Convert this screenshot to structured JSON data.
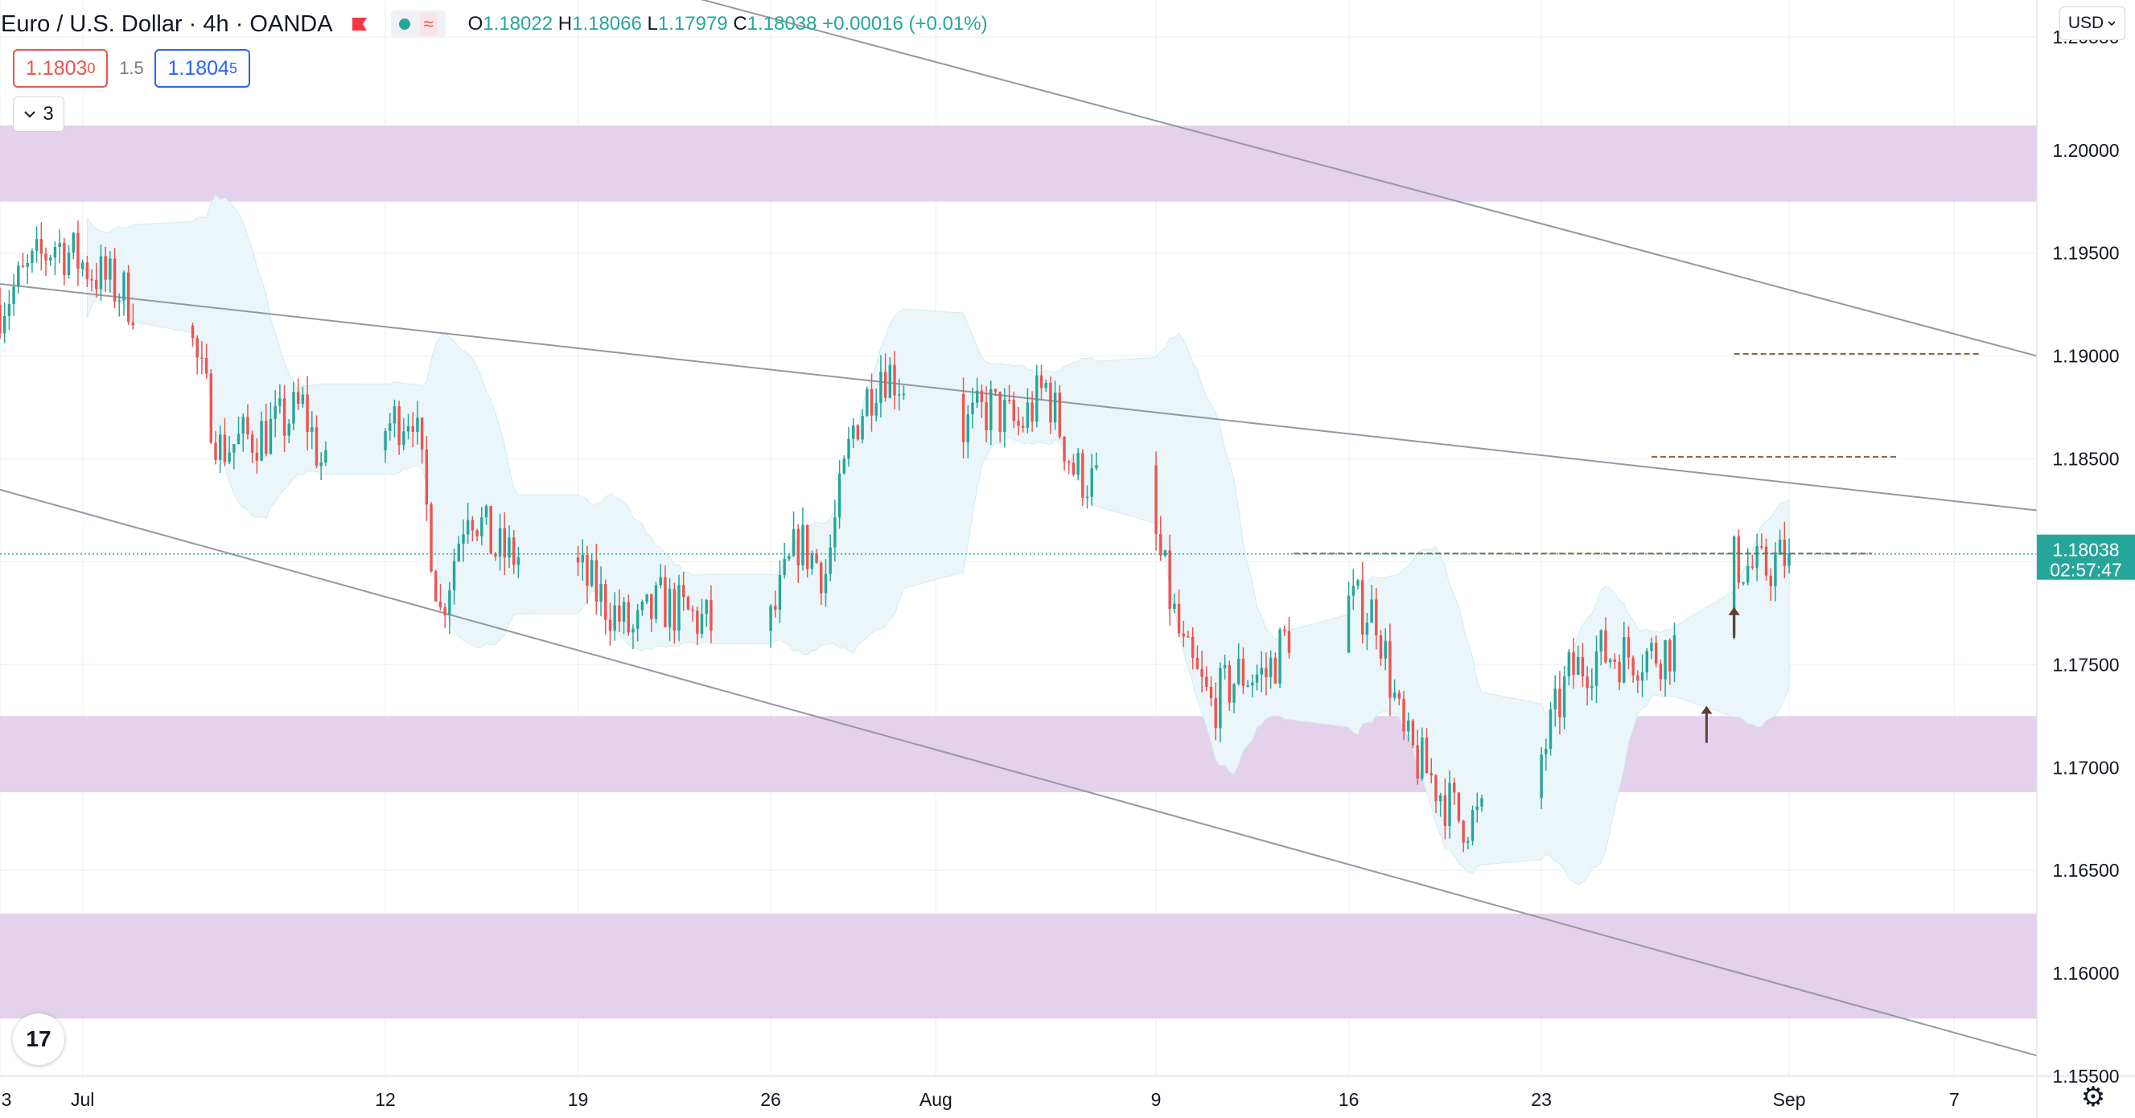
{
  "header": {
    "symbol": "Euro / U.S. Dollar · 4h · OANDA",
    "ohlc": {
      "o_label": "O",
      "o": "1.18022",
      "h_label": "H",
      "h": "1.18066",
      "l_label": "L",
      "l": "1.17979",
      "c_label": "C",
      "c": "1.18038",
      "change": "+0.00016 (+0.01%)"
    },
    "indicator_wave": "≈",
    "sell_price": "1.1803",
    "sell_price_sup": "0",
    "spread": "1.5",
    "buy_price": "1.1804",
    "buy_price_sup": "5",
    "collapse_count": "3",
    "currency": "USD",
    "logo": "17"
  },
  "icons": {
    "chevron": "chevron-down-icon",
    "logo": "tradingview-logo",
    "settings": "gear-icon"
  },
  "colors": {
    "up": "#26a69a",
    "down": "#ef5350",
    "zone": "#e4d1ec",
    "band": "#eaf6f9",
    "trendline": "#9598a1",
    "dashed_level": "#8b6b3e",
    "current_price": "#26a69a",
    "arrow": "#5d4037"
  },
  "chart_data": {
    "type": "candlestick",
    "title": "Euro / U.S. Dollar",
    "interval": "4h",
    "source": "OANDA",
    "ylim": [
      1.155,
      1.2073
    ],
    "y_ticks": [
      1.2055,
      1.2,
      1.195,
      1.19,
      1.185,
      1.18,
      1.175,
      1.17,
      1.165,
      1.16,
      1.155
    ],
    "y_tick_labels": [
      "1.20550",
      "1.20000",
      "1.19500",
      "1.19000",
      "1.18500",
      "",
      "1.17500",
      "1.17000",
      "1.16500",
      "1.16000",
      "1.15500"
    ],
    "x_axis": {
      "tick_labels": [
        "3",
        "Jul",
        "12",
        "19",
        "26",
        "Aug",
        "9",
        "16",
        "23",
        "Sep",
        "7"
      ],
      "tick_dates": [
        "2021-06-28",
        "2021-07-01",
        "2021-07-12",
        "2021-07-19",
        "2021-07-26",
        "2021-08-01",
        "2021-08-09",
        "2021-08-16",
        "2021-08-23",
        "2021-09-01",
        "2021-09-07"
      ],
      "visible_range": [
        "2021-06-28",
        "2021-09-10"
      ]
    },
    "last_price": "1.18038",
    "countdown": "02:57:47",
    "candle_path": [
      [
        "2021-06-28",
        1.1925
      ],
      [
        "2021-06-30",
        1.1955
      ],
      [
        "2021-07-02",
        1.1935
      ],
      [
        "2021-07-05",
        1.1905
      ],
      [
        "2021-07-06",
        1.1855
      ],
      [
        "2021-07-08",
        1.1865
      ],
      [
        "2021-07-09",
        1.1875
      ],
      [
        "2021-07-10",
        1.1835
      ],
      [
        "2021-07-11",
        1.1815
      ],
      [
        "2021-07-12",
        1.1865
      ],
      [
        "2021-07-13",
        1.1875
      ],
      [
        "2021-07-14",
        1.1775
      ],
      [
        "2021-07-15",
        1.183
      ],
      [
        "2021-07-16",
        1.1805
      ],
      [
        "2021-07-19",
        1.1795
      ],
      [
        "2021-07-20",
        1.178
      ],
      [
        "2021-07-21",
        1.1765
      ],
      [
        "2021-07-22",
        1.178
      ],
      [
        "2021-07-24",
        1.1768
      ],
      [
        "2021-07-26",
        1.177
      ],
      [
        "2021-07-27",
        1.181
      ],
      [
        "2021-07-28",
        1.1795
      ],
      [
        "2021-07-29",
        1.1865
      ],
      [
        "2021-07-30",
        1.1895
      ],
      [
        "2021-08-01",
        1.1875
      ],
      [
        "2021-08-02",
        1.1865
      ],
      [
        "2021-08-03",
        1.1875
      ],
      [
        "2021-08-04",
        1.1865
      ],
      [
        "2021-08-05",
        1.1885
      ],
      [
        "2021-08-06",
        1.1845
      ],
      [
        "2021-08-07",
        1.1835
      ],
      [
        "2021-08-09",
        1.181
      ],
      [
        "2021-08-10",
        1.1755
      ],
      [
        "2021-08-11",
        1.173
      ],
      [
        "2021-08-12",
        1.1745
      ],
      [
        "2021-08-13",
        1.1745
      ],
      [
        "2021-08-15",
        1.1795
      ],
      [
        "2021-08-16",
        1.178
      ],
      [
        "2021-08-17",
        1.1775
      ],
      [
        "2021-08-18",
        1.1712
      ],
      [
        "2021-08-19",
        1.1695
      ],
      [
        "2021-08-20",
        1.1675
      ],
      [
        "2021-08-22",
        1.1675
      ],
      [
        "2021-08-23",
        1.1705
      ],
      [
        "2021-08-24",
        1.1745
      ],
      [
        "2021-08-25",
        1.1755
      ],
      [
        "2021-08-26",
        1.1755
      ],
      [
        "2021-08-27",
        1.1755
      ],
      [
        "2021-08-28",
        1.176
      ],
      [
        "2021-08-29",
        1.1748
      ],
      [
        "2021-08-30",
        1.18
      ],
      [
        "2021-08-31",
        1.1795
      ],
      [
        "2021-09-01",
        1.18038
      ]
    ],
    "zones": [
      {
        "from": 1.1975,
        "to": 1.2012
      },
      {
        "from": 1.1688,
        "to": 1.1725
      },
      {
        "from": 1.1578,
        "to": 1.1629
      }
    ],
    "trendlines": [
      {
        "from": [
          "2021-06-28",
          1.1935
        ],
        "to": [
          "2021-09-10",
          1.1825
        ]
      },
      {
        "from": [
          "2021-06-28",
          1.1835
        ],
        "to": [
          "2021-09-10",
          1.156
        ]
      },
      {
        "from": [
          "2021-07-23",
          1.2075
        ],
        "to": [
          "2021-09-10",
          1.19
        ]
      }
    ],
    "dashed_levels": [
      {
        "price": 1.1901,
        "from": "2021-08-30",
        "to": "2021-09-08"
      },
      {
        "price": 1.1851,
        "from": "2021-08-27",
        "to": "2021-09-05"
      },
      {
        "price": 1.1804,
        "from": "2021-08-14",
        "to": "2021-09-04"
      }
    ],
    "arrows": [
      {
        "date": "2021-08-29",
        "price_from": 1.1712,
        "price_to": 1.173
      },
      {
        "date": "2021-08-30",
        "price_from": 1.1763,
        "price_to": 1.1778
      }
    ]
  }
}
